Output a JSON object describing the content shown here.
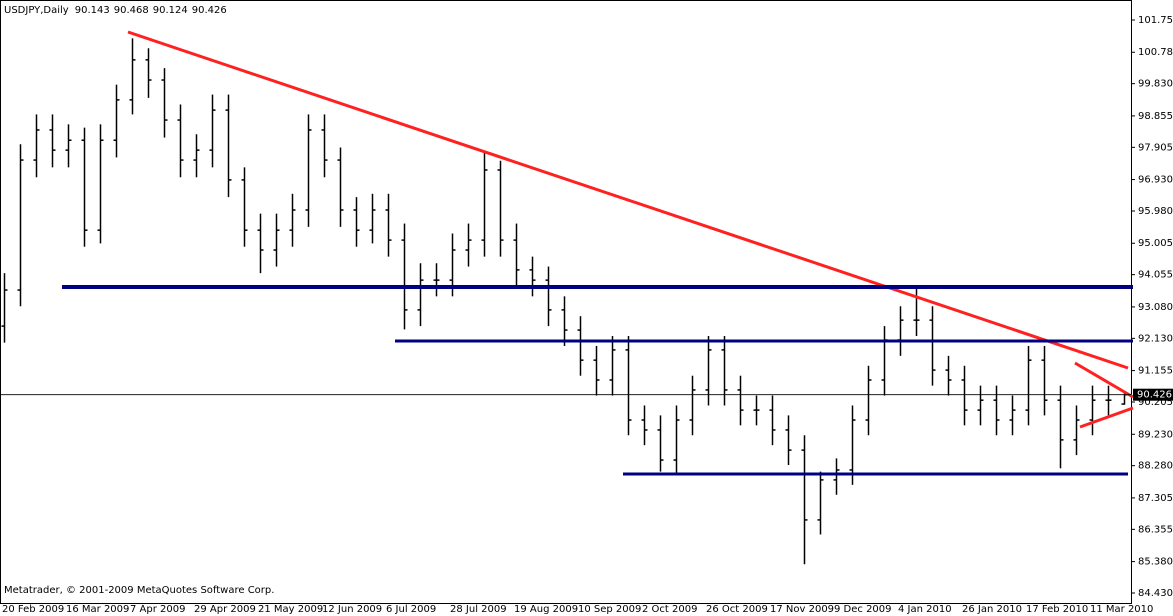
{
  "chart_data": {
    "type": "ohlc",
    "title": "USDJPY,Daily",
    "footer": "Metatrader, © 2001-2009 MetaQuotes Software Corp.",
    "categories": [
      "20 Feb 2009",
      null,
      null,
      null,
      "16 Mar 2009",
      null,
      null,
      null,
      "7 Apr 2009",
      null,
      null,
      null,
      "29 Apr 2009",
      null,
      null,
      null,
      "21 May 2009",
      null,
      null,
      null,
      "12 Jun 2009",
      null,
      null,
      null,
      "6 Jul 2009",
      null,
      null,
      null,
      "28 Jul 2009",
      null,
      null,
      null,
      "19 Aug 2009",
      null,
      null,
      null,
      "10 Sep 2009",
      null,
      null,
      null,
      "2 Oct 2009",
      null,
      null,
      null,
      "26 Oct 2009",
      null,
      null,
      null,
      "17 Nov 2009",
      null,
      null,
      null,
      "9 Dec 2009",
      null,
      null,
      null,
      "4 Jan 2010",
      null,
      null,
      null,
      "26 Jan 2010",
      null,
      null,
      null,
      "17 Feb 2010",
      null,
      null,
      null,
      "11 Mar 2010",
      null,
      null
    ],
    "open": [
      92.5,
      93.59,
      97.52,
      98.43,
      97.82,
      98.12,
      95.4,
      98.12,
      99.34,
      100.55,
      99.94,
      98.73,
      97.52,
      97.82,
      99.03,
      96.92,
      95.4,
      94.8,
      95.4,
      96.01,
      98.43,
      97.52,
      96.01,
      95.4,
      96.01,
      95.1,
      92.99,
      93.89,
      93.89,
      94.8,
      95.1,
      97.22,
      95.1,
      94.2,
      93.89,
      92.99,
      92.38,
      91.47,
      90.87,
      91.78,
      89.66,
      89.36,
      88.45,
      89.66,
      90.57,
      91.78,
      90.57,
      89.96,
      89.96,
      89.36,
      88.75,
      86.64,
      87.85,
      88.15,
      89.66,
      90.87,
      92.08,
      92.68,
      92.68,
      91.17,
      90.87,
      89.96,
      90.26,
      89.66,
      89.96,
      91.47,
      90.26,
      89.06,
      89.66,
      90.26,
      90.143
    ],
    "high": [
      94.1,
      98.0,
      98.9,
      98.9,
      98.6,
      98.5,
      98.6,
      99.8,
      101.2,
      100.9,
      100.3,
      99.2,
      98.3,
      99.5,
      99.5,
      97.3,
      95.9,
      95.9,
      96.5,
      98.9,
      98.9,
      97.9,
      96.4,
      96.5,
      96.5,
      95.6,
      94.4,
      94.4,
      95.3,
      95.6,
      97.8,
      97.5,
      95.6,
      94.6,
      94.3,
      93.4,
      92.8,
      91.9,
      92.2,
      92.2,
      90.1,
      89.8,
      90.1,
      91.0,
      92.2,
      92.2,
      91.0,
      90.4,
      90.4,
      89.8,
      89.2,
      88.1,
      88.5,
      90.1,
      91.3,
      92.5,
      93.1,
      93.7,
      93.1,
      91.6,
      91.3,
      90.7,
      90.7,
      90.4,
      91.9,
      91.9,
      90.7,
      90.1,
      90.7,
      90.7,
      90.468
    ],
    "low": [
      92.0,
      93.1,
      97.0,
      97.3,
      97.3,
      94.9,
      95.0,
      97.6,
      98.9,
      99.4,
      98.2,
      97.0,
      97.0,
      97.3,
      96.4,
      94.9,
      94.1,
      94.3,
      94.9,
      95.5,
      97.0,
      95.5,
      94.9,
      95.0,
      94.6,
      92.4,
      92.5,
      93.4,
      93.4,
      94.3,
      94.6,
      94.6,
      93.7,
      93.4,
      92.5,
      91.9,
      91.0,
      90.4,
      90.4,
      89.2,
      88.9,
      88.1,
      88.0,
      89.2,
      90.1,
      90.1,
      89.5,
      89.5,
      88.9,
      88.3,
      85.3,
      86.2,
      87.4,
      87.7,
      89.2,
      90.4,
      91.6,
      92.2,
      90.7,
      90.4,
      89.5,
      89.5,
      89.2,
      89.2,
      89.5,
      89.8,
      88.2,
      88.6,
      89.2,
      89.8,
      90.124
    ],
    "close": [
      93.59,
      97.52,
      98.43,
      97.82,
      98.12,
      95.4,
      98.12,
      99.34,
      100.55,
      99.94,
      98.73,
      97.52,
      97.82,
      99.03,
      96.92,
      95.4,
      94.8,
      95.4,
      96.01,
      98.43,
      97.52,
      96.01,
      95.4,
      96.01,
      95.1,
      92.99,
      93.89,
      93.89,
      94.8,
      95.1,
      97.22,
      95.1,
      94.2,
      93.89,
      92.99,
      92.38,
      91.47,
      90.87,
      91.78,
      89.66,
      89.36,
      88.45,
      89.66,
      90.57,
      91.78,
      90.57,
      89.96,
      89.96,
      89.36,
      88.75,
      86.64,
      87.85,
      88.15,
      89.66,
      90.87,
      92.08,
      92.68,
      92.68,
      91.17,
      90.87,
      89.96,
      90.26,
      89.66,
      89.96,
      91.47,
      90.26,
      89.06,
      89.66,
      90.26,
      90.26,
      90.426
    ],
    "color": "#000000",
    "ylim": [
      84.128,
      102.299
    ],
    "yticks": [
      101.755,
      {
        "value": 100.78,
        "label": "100.780"
      },
      {
        "value": 99.83,
        "label": "99.830"
      },
      98.855,
      97.905,
      {
        "value": 96.93,
        "label": "96.930"
      },
      {
        "value": 95.98,
        "label": "95.980"
      },
      95.005,
      94.055,
      {
        "value": 93.08,
        "label": "93.080"
      },
      {
        "value": 92.13,
        "label": "92.130"
      },
      91.155,
      90.205,
      {
        "value": 89.23,
        "label": "89.230"
      },
      {
        "value": 88.28,
        "label": "88.280"
      },
      87.305,
      86.355,
      {
        "value": 85.38,
        "label": "85.380"
      },
      {
        "value": 84.43,
        "label": "84.430"
      }
    ],
    "grid": false
  }
}
